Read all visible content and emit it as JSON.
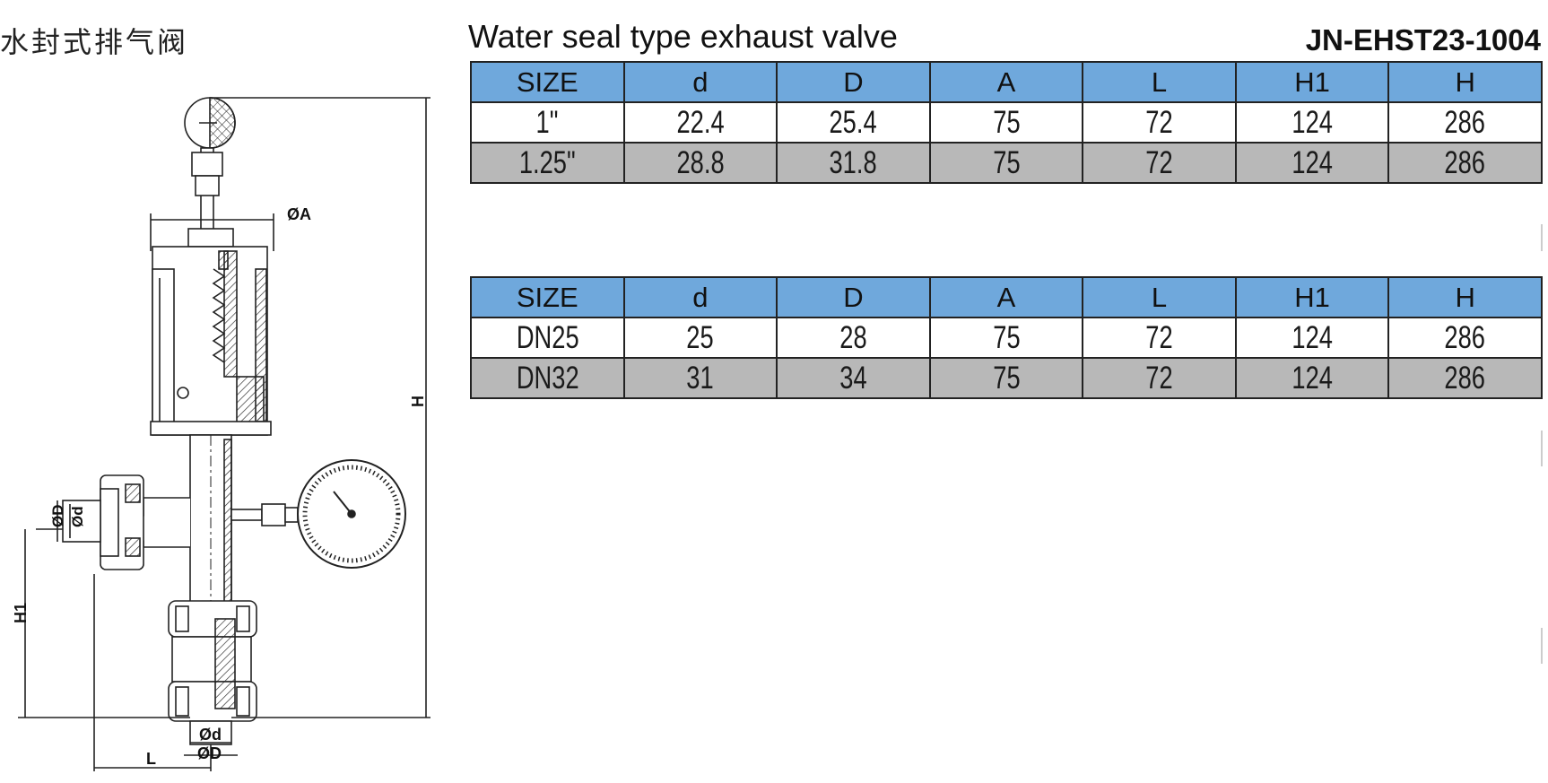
{
  "header": {
    "title_cn": "水封式排气阀",
    "title_en": "Water seal type exhaust valve",
    "model_code": "JN-EHST23-1004"
  },
  "drawing_labels": {
    "dia_a": "ØA",
    "dia_d_big": "ØD",
    "dia_d_small": "Ød",
    "h": "H",
    "h1": "H1",
    "l": "L",
    "bottom_d_small": "Ød",
    "bottom_d_big": "ØD"
  },
  "tables": [
    {
      "headers": [
        "SIZE",
        "d",
        "D",
        "A",
        "L",
        "H1",
        "H"
      ],
      "rows": [
        [
          "1\"",
          "22.4",
          "25.4",
          "75",
          "72",
          "124",
          "286"
        ],
        [
          "1.25\"",
          "28.8",
          "31.8",
          "75",
          "72",
          "124",
          "286"
        ]
      ]
    },
    {
      "headers": [
        "SIZE",
        "d",
        "D",
        "A",
        "L",
        "H1",
        "H"
      ],
      "rows": [
        [
          "DN25",
          "25",
          "28",
          "75",
          "72",
          "124",
          "286"
        ],
        [
          "DN32",
          "31",
          "34",
          "75",
          "72",
          "124",
          "286"
        ]
      ]
    }
  ]
}
